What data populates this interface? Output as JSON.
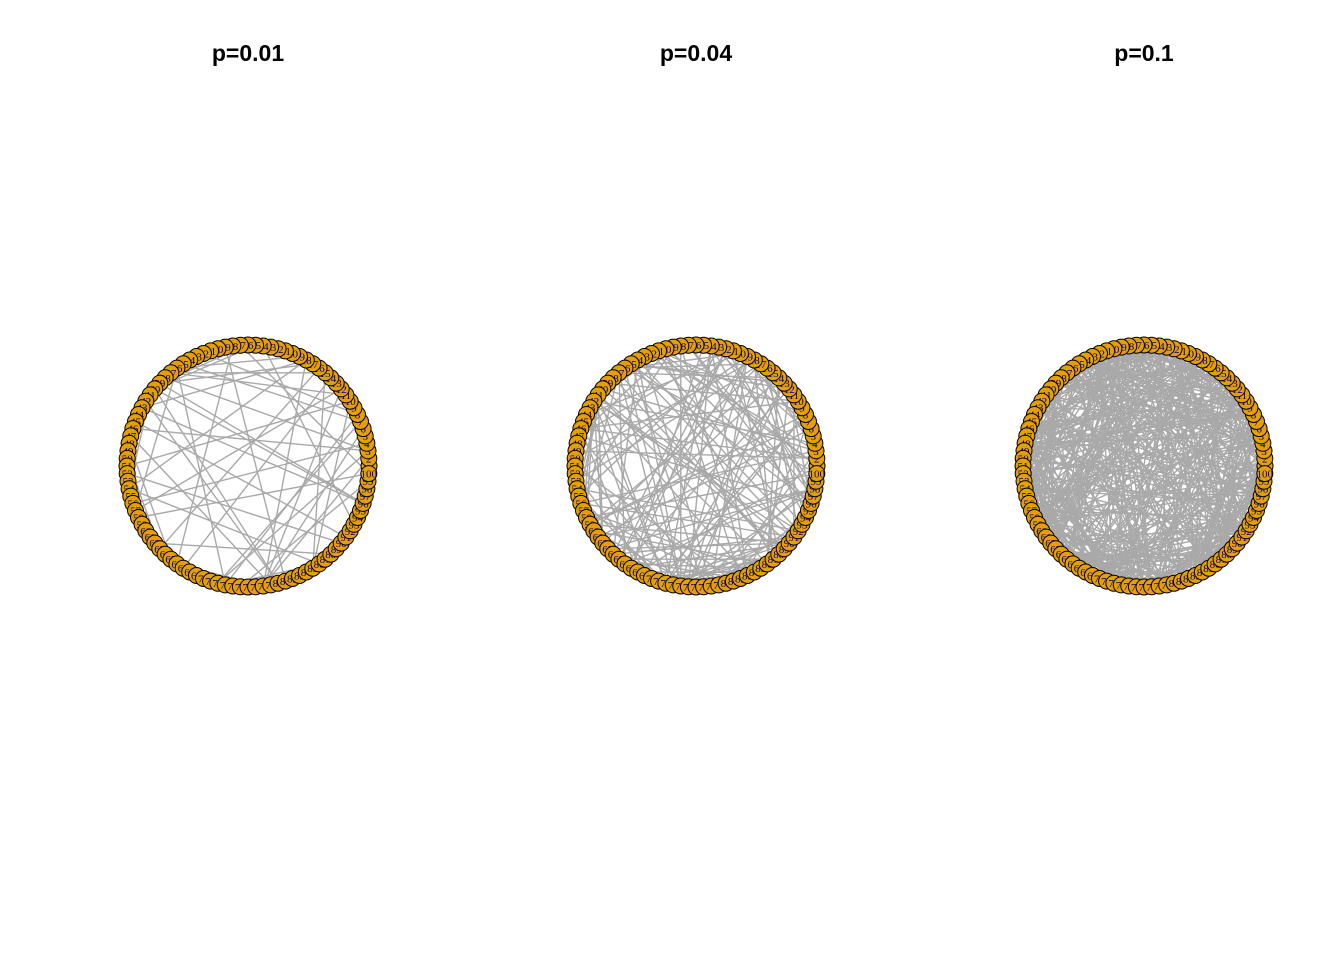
{
  "panels": [
    {
      "title": "p=0.01",
      "p": 0.01
    },
    {
      "title": "p=0.04",
      "p": 0.04
    },
    {
      "title": "p=0.1",
      "p": 0.1
    }
  ],
  "graph": {
    "node_count": 100,
    "layout": "circle",
    "node_fill": "#E69F00",
    "node_stroke": "#000000",
    "label_color": "#00008B",
    "edge_color": "#A9A9A9"
  }
}
